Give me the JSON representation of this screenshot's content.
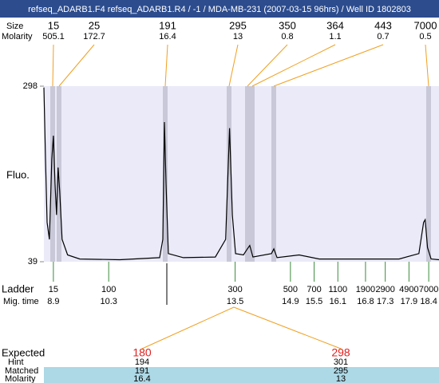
{
  "title": "refseq_ADARB1.F4  refseq_ADARB1.R4 / -1 / MDA-MB-231 (2007-03-15 96hrs) / Well ID 1802803",
  "peaks": {
    "size_label": "Size",
    "molarity_label": "Molarity",
    "sizes": [
      15,
      25,
      191,
      295,
      350,
      364,
      443,
      7000
    ],
    "molarities": [
      505.1,
      172.7,
      16.4,
      13,
      0.8,
      1.1,
      0.7,
      0.5
    ]
  },
  "chart_data": {
    "type": "line",
    "y_label": "Fluo.",
    "color": "#000000",
    "x": [
      8.66,
      8.7,
      8.74,
      8.8,
      8.86,
      8.9,
      8.94,
      8.98,
      9.02,
      9.06,
      9.12,
      9.26,
      9.57,
      10.58,
      11.59,
      11.67,
      11.71,
      11.75,
      11.81,
      12.19,
      13.0,
      13.26,
      13.36,
      13.43,
      13.51,
      13.71,
      13.81,
      13.87,
      13.95,
      14.42,
      14.48,
      14.56,
      15.12,
      15.63,
      17.65,
      18.15,
      18.27,
      18.31,
      18.37,
      18.46,
      18.66
    ],
    "values": [
      296,
      191,
      97,
      72,
      190,
      225,
      155,
      108,
      178,
      143,
      72,
      49,
      43,
      42,
      45,
      72,
      245,
      155,
      51,
      45,
      46,
      72,
      236,
      108,
      51,
      49,
      58,
      63,
      46,
      51,
      58,
      45,
      49,
      43,
      43,
      51,
      97,
      101,
      60,
      43,
      42
    ],
    "xlim": [
      8.66,
      18.66
    ],
    "ylim": [
      39,
      298
    ],
    "yticks": [
      39,
      298
    ]
  },
  "ladder": {
    "label": "Ladder",
    "time_label": "Mig. time",
    "sizes": [
      15,
      100,
      300,
      500,
      700,
      1100,
      1900,
      2900,
      4900,
      7000
    ],
    "mig_times": [
      8.9,
      10.3,
      13.5,
      14.9,
      15.5,
      16.1,
      16.8,
      17.3,
      17.9,
      18.4
    ]
  },
  "expected": {
    "label": "Expected",
    "hint_label": "Hint",
    "matched_label": "Matched",
    "molarity_label": "Molarity",
    "columns": [
      {
        "expected": 180,
        "hint": 194,
        "matched": 191,
        "molarity": 16.4
      },
      {
        "expected": 298,
        "hint": 301,
        "matched": 295,
        "molarity": 13
      }
    ]
  }
}
